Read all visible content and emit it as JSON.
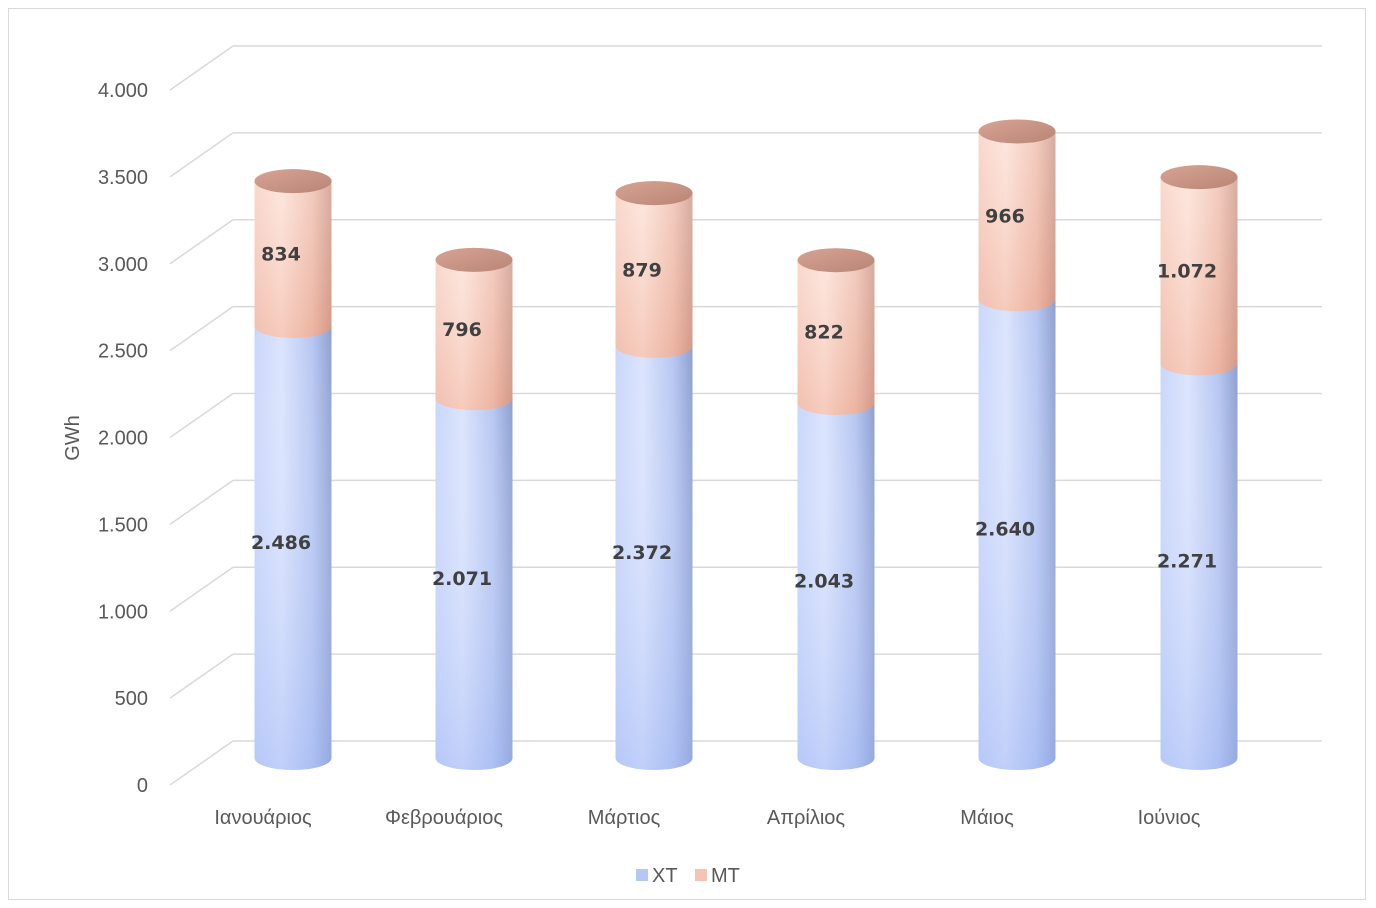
{
  "chart_data": {
    "type": "bar",
    "stacked": true,
    "style": "3d-cylinder",
    "categories": [
      "Ιανουάριος",
      "Φεβρουάριος",
      "Μάρτιος",
      "Απρίλιος",
      "Μάιος",
      "Ιούνιος"
    ],
    "series": [
      {
        "name": "ΧΤ",
        "values": [
          2486,
          2071,
          2372,
          2043,
          2640,
          2271
        ],
        "labels": [
          "2.486",
          "2.071",
          "2.372",
          "2.043",
          "2.640",
          "2.271"
        ],
        "color": "#b4c7f5"
      },
      {
        "name": "ΜΤ",
        "values": [
          834,
          796,
          879,
          822,
          966,
          1072
        ],
        "labels": [
          "834",
          "796",
          "879",
          "822",
          "966",
          "1.072"
        ],
        "color": "#f5c4b4"
      }
    ],
    "ylabel": "GWh",
    "ylim": [
      0,
      4000
    ],
    "yticks": [
      0,
      500,
      1000,
      1500,
      2000,
      2500,
      3000,
      3500,
      4000
    ],
    "ytick_labels": [
      "0",
      "500",
      "1.000",
      "1.500",
      "2.000",
      "2.500",
      "3.000",
      "3.500",
      "4.000"
    ],
    "grid": true,
    "legend": "bottom"
  }
}
